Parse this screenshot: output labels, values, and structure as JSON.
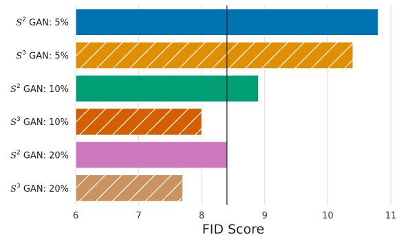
{
  "chart_data": {
    "type": "bar",
    "orientation": "horizontal",
    "categories": [
      {
        "label": "GAN: 5%",
        "prefix": "S",
        "sup": "2"
      },
      {
        "label": "GAN: 5%",
        "prefix": "S",
        "sup": "3"
      },
      {
        "label": "GAN: 10%",
        "prefix": "S",
        "sup": "2"
      },
      {
        "label": "GAN: 10%",
        "prefix": "S",
        "sup": "3"
      },
      {
        "label": "GAN: 20%",
        "prefix": "S",
        "sup": "2"
      },
      {
        "label": "GAN: 20%",
        "prefix": "S",
        "sup": "3"
      }
    ],
    "values": [
      10.8,
      10.4,
      8.9,
      8.0,
      8.4,
      7.7
    ],
    "colors": [
      "#0173b2",
      "#de8f05",
      "#029e73",
      "#d55e00",
      "#cc78bc",
      "#ca9161"
    ],
    "hatched": [
      false,
      true,
      false,
      true,
      false,
      true
    ],
    "xlabel": "FID Score",
    "xlim": [
      6,
      11
    ],
    "xticks": [
      "6",
      "7",
      "8",
      "9",
      "10",
      "11"
    ],
    "reference_line": 8.4,
    "grid": "vertical"
  }
}
